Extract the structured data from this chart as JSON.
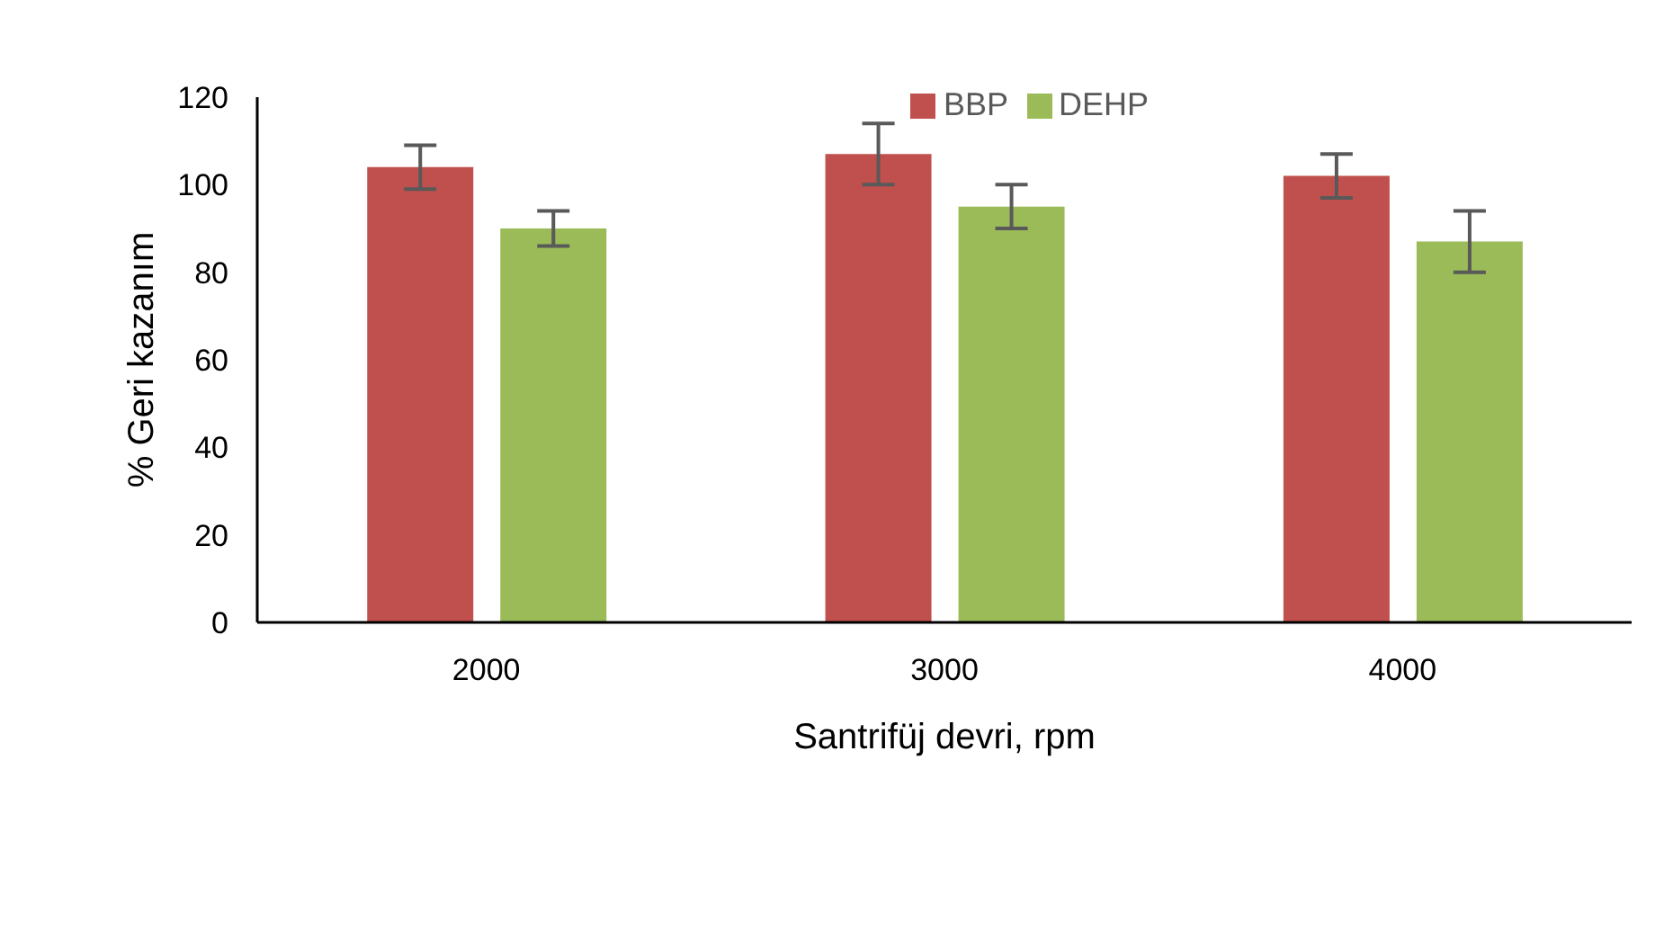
{
  "chart_data": {
    "type": "bar",
    "xlabel": "Santrifüj devri, rpm",
    "ylabel": "% Geri kazanım",
    "categories": [
      "2000",
      "3000",
      "4000"
    ],
    "series": [
      {
        "name": "BBP",
        "color": "#c0504d",
        "values": [
          104,
          107,
          102
        ],
        "errors": [
          5,
          7,
          5
        ]
      },
      {
        "name": "DEHP",
        "color": "#9bbb59",
        "values": [
          90,
          95,
          87
        ],
        "errors": [
          4,
          5,
          7
        ]
      }
    ],
    "ylim": [
      0,
      120
    ],
    "yticks": [
      0,
      20,
      40,
      60,
      80,
      100,
      120
    ],
    "grid": false,
    "legend": "top"
  }
}
